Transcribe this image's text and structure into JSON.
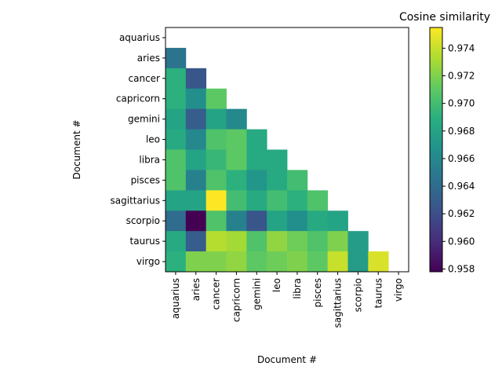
{
  "chart_data": {
    "type": "heatmap",
    "title": "Cosine similarity",
    "xlabel": "Document #",
    "ylabel": "Document #",
    "categories": [
      "aquarius",
      "aries",
      "cancer",
      "capricorn",
      "gemini",
      "leo",
      "libra",
      "pisces",
      "sagittarius",
      "scorpio",
      "taurus",
      "virgo"
    ],
    "mask": "upper-triangle-including-diagonal",
    "colorscale": "viridis",
    "zlim": [
      0.9578,
      0.9755
    ],
    "colorbar_ticks": [
      "0.958",
      "0.960",
      "0.962",
      "0.964",
      "0.966",
      "0.968",
      "0.970",
      "0.972",
      "0.974"
    ],
    "colorbar_tick_values": [
      0.958,
      0.96,
      0.962,
      0.964,
      0.966,
      0.968,
      0.97,
      0.972,
      0.974
    ],
    "values": [
      [
        null,
        null,
        null,
        null,
        null,
        null,
        null,
        null,
        null,
        null,
        null,
        null
      ],
      [
        0.9645,
        null,
        null,
        null,
        null,
        null,
        null,
        null,
        null,
        null,
        null,
        null
      ],
      [
        0.969,
        0.9625,
        null,
        null,
        null,
        null,
        null,
        null,
        null,
        null,
        null,
        null
      ],
      [
        0.969,
        0.9665,
        0.971,
        null,
        null,
        null,
        null,
        null,
        null,
        null,
        null,
        null
      ],
      [
        0.968,
        0.963,
        0.968,
        0.966,
        null,
        null,
        null,
        null,
        null,
        null,
        null,
        null
      ],
      [
        0.9685,
        0.966,
        0.9705,
        0.971,
        0.9685,
        null,
        null,
        null,
        null,
        null,
        null,
        null
      ],
      [
        0.9705,
        0.968,
        0.9695,
        0.971,
        0.9685,
        0.9685,
        null,
        null,
        null,
        null,
        null,
        null
      ],
      [
        0.9705,
        0.9655,
        0.9705,
        0.969,
        0.967,
        0.9685,
        0.97,
        null,
        null,
        null,
        null,
        null
      ],
      [
        0.968,
        0.968,
        0.9755,
        0.97,
        0.9685,
        0.97,
        0.969,
        0.9705,
        null,
        null,
        null,
        null
      ],
      [
        0.964,
        0.9578,
        0.9705,
        0.9655,
        0.9625,
        0.968,
        0.9665,
        0.9685,
        0.968,
        null,
        null,
        null
      ],
      [
        0.9685,
        0.963,
        0.9735,
        0.973,
        0.9705,
        0.9725,
        0.9715,
        0.9705,
        0.972,
        0.9675,
        null,
        null
      ],
      [
        0.969,
        0.972,
        0.972,
        0.9725,
        0.971,
        0.9715,
        0.972,
        0.971,
        0.974,
        0.9675,
        0.9745,
        null
      ]
    ]
  }
}
